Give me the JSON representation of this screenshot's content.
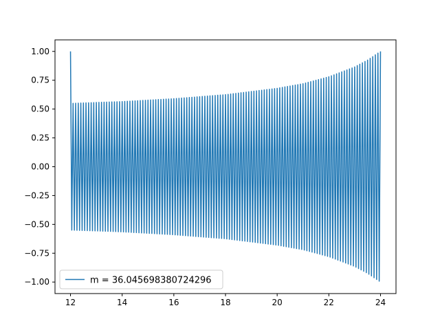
{
  "chart_data": {
    "type": "line",
    "title": "",
    "xlabel": "",
    "ylabel": "",
    "xlim": [
      11.4,
      24.6
    ],
    "ylim": [
      -1.1,
      1.1
    ],
    "x_ticks": [
      12,
      14,
      16,
      18,
      20,
      22,
      24
    ],
    "x_tick_labels": [
      "12",
      "14",
      "16",
      "18",
      "20",
      "22",
      "24"
    ],
    "y_ticks": [
      -1.0,
      -0.75,
      -0.5,
      -0.25,
      0.0,
      0.25,
      0.5,
      0.75,
      1.0
    ],
    "y_tick_labels": [
      "−1.00",
      "−0.75",
      "−0.50",
      "−0.25",
      "0.00",
      "0.25",
      "0.50",
      "0.75",
      "1.00"
    ],
    "grid": false,
    "legend_position": "lower-left",
    "series": [
      {
        "name": "m = 36.045698380724296",
        "color": "#1f77b4",
        "x_start": 12,
        "x_end": 24,
        "initial_value": 1.0,
        "oscillation_count": 120,
        "envelope": [
          {
            "x": 12.1,
            "amplitude": 0.55
          },
          {
            "x": 14,
            "amplitude": 0.565
          },
          {
            "x": 16,
            "amplitude": 0.59
          },
          {
            "x": 18,
            "amplitude": 0.625
          },
          {
            "x": 20,
            "amplitude": 0.68
          },
          {
            "x": 21,
            "amplitude": 0.72
          },
          {
            "x": 22,
            "amplitude": 0.78
          },
          {
            "x": 23,
            "amplitude": 0.865
          },
          {
            "x": 23.5,
            "amplitude": 0.925
          },
          {
            "x": 24,
            "amplitude": 1.0
          }
        ]
      }
    ]
  }
}
